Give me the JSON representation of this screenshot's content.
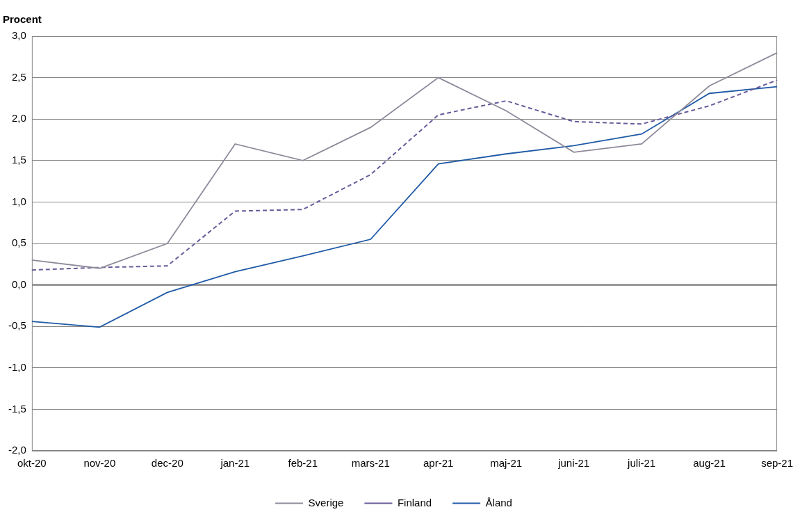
{
  "chart_data": {
    "type": "line",
    "y_label": "Procent",
    "categories": [
      "okt-20",
      "nov-20",
      "dec-20",
      "jan-21",
      "feb-21",
      "mars-21",
      "apr-21",
      "maj-21",
      "juni-21",
      "juli-21",
      "aug-21",
      "sep-21"
    ],
    "series": [
      {
        "name": "Sverige",
        "color": "#8e8a9a",
        "line_style": "solid",
        "values": [
          0.3,
          0.2,
          0.5,
          1.7,
          1.5,
          1.9,
          2.5,
          2.1,
          1.6,
          1.7,
          2.4,
          2.8
        ]
      },
      {
        "name": "Finland",
        "color": "#6a5a9a",
        "line_style": "dashed",
        "values": [
          0.18,
          0.21,
          0.23,
          0.89,
          0.91,
          1.33,
          2.05,
          2.22,
          1.97,
          1.94,
          2.16,
          2.47
        ]
      },
      {
        "name": "Åland",
        "color": "#1f5aa6",
        "line_style": "solid",
        "values": [
          -0.44,
          -0.51,
          -0.09,
          0.16,
          0.35,
          0.55,
          1.46,
          1.58,
          1.68,
          1.82,
          2.31,
          2.39
        ]
      }
    ],
    "ylim": [
      -2.0,
      3.0
    ],
    "yticks": [
      {
        "value": -2.0,
        "label": "-2,0"
      },
      {
        "value": -1.5,
        "label": "-1,5"
      },
      {
        "value": -1.0,
        "label": "-1,0"
      },
      {
        "value": -0.5,
        "label": "-0,5"
      },
      {
        "value": 0.0,
        "label": "0,0"
      },
      {
        "value": 0.5,
        "label": "0,5"
      },
      {
        "value": 1.0,
        "label": "1,0"
      },
      {
        "value": 1.5,
        "label": "1,5"
      },
      {
        "value": 2.0,
        "label": "2,0"
      },
      {
        "value": 2.5,
        "label": "2,5"
      },
      {
        "value": 3.0,
        "label": "3,0"
      }
    ],
    "grid": true,
    "legend": "bottom"
  }
}
